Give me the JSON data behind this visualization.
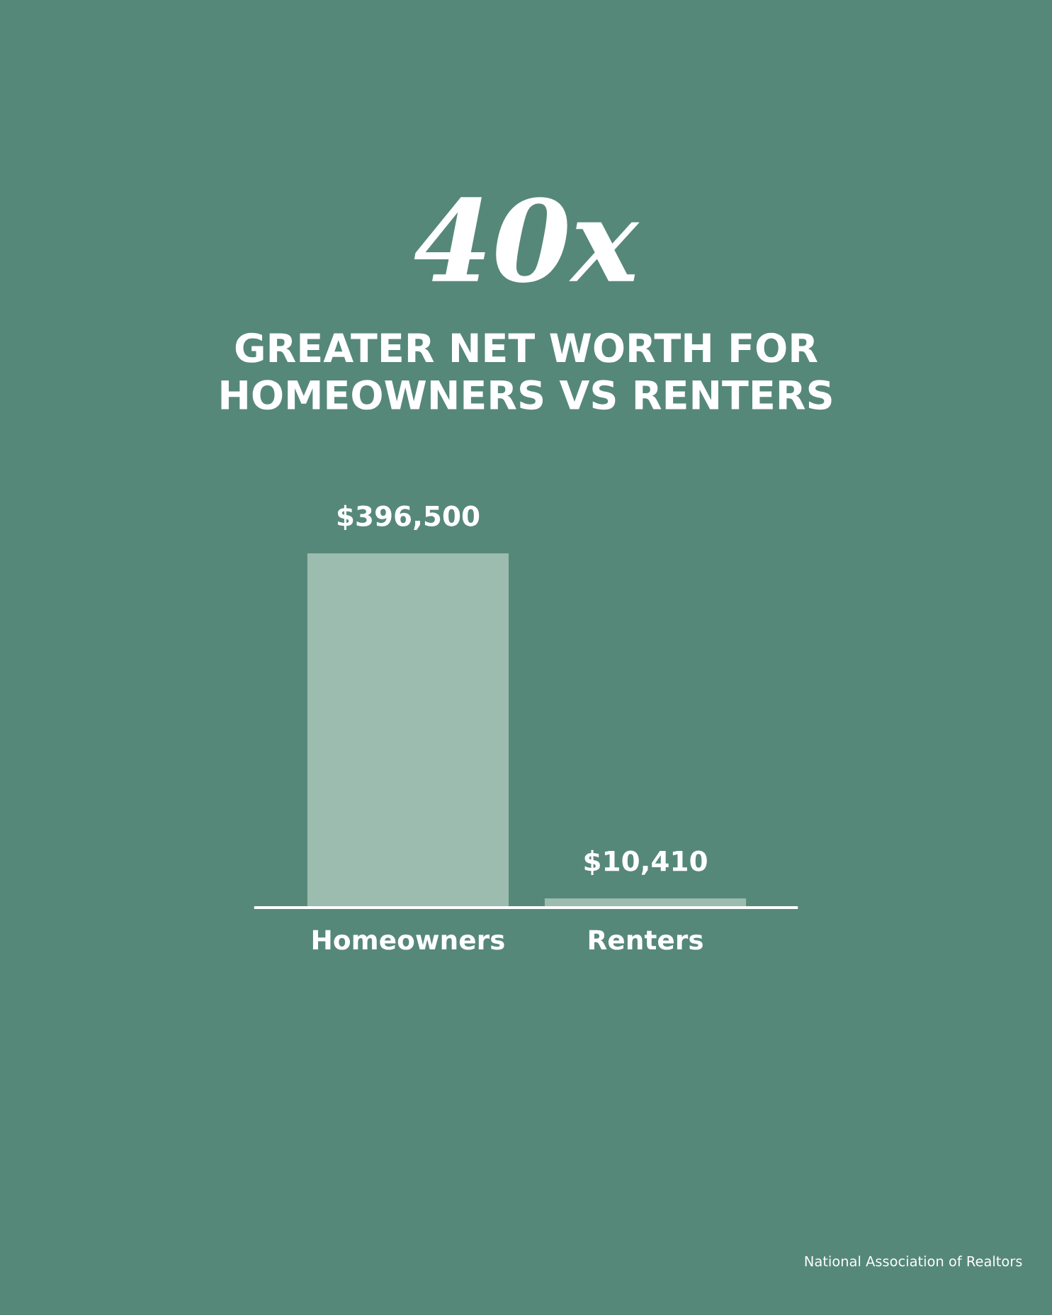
{
  "chart_data": {
    "type": "bar",
    "title": "40x",
    "subtitle": "GREATER NET WORTH FOR\nHOMEOWNERS VS RENTERS",
    "categories": [
      "Homeowners",
      "Renters"
    ],
    "values": [
      396500,
      10410
    ],
    "value_labels": [
      "$396,500",
      "$10,410"
    ],
    "color": "#9bbcae",
    "annotations": [
      "National Association of Realtors"
    ],
    "grid": false,
    "legend": false
  }
}
